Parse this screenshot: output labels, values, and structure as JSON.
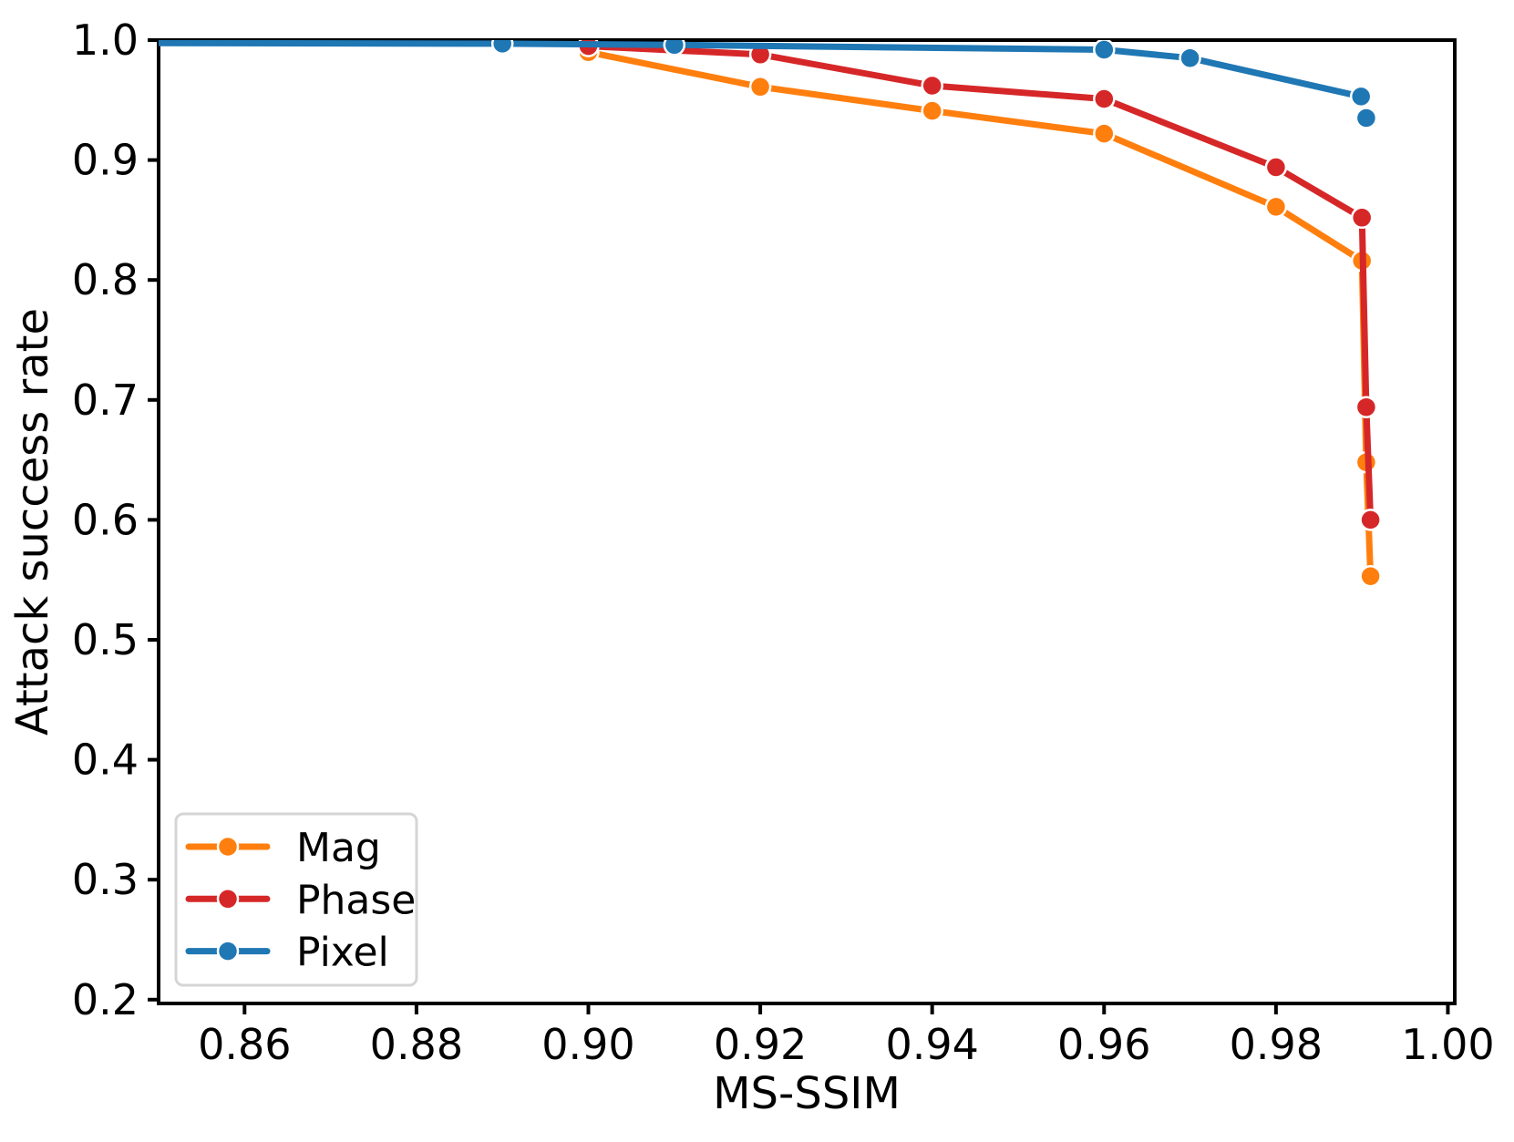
{
  "chart_data": {
    "type": "line",
    "title": "",
    "xlabel": "MS-SSIM",
    "ylabel": "Attack success rate",
    "xlim": [
      0.85,
      1.0008
    ],
    "ylim": [
      0.1968,
      1.0
    ],
    "grid": false,
    "background": "#ffffff",
    "spine_color": "#000000",
    "text_color": "#000000",
    "xticks": {
      "values": [
        0.86,
        0.88,
        0.9,
        0.92,
        0.94,
        0.96,
        0.98,
        1.0
      ],
      "labels": [
        "0.86",
        "0.88",
        "0.90",
        "0.92",
        "0.94",
        "0.96",
        "0.98",
        "1.00"
      ]
    },
    "yticks": {
      "values": [
        0.2,
        0.3,
        0.4,
        0.5,
        0.6,
        0.7,
        0.8,
        0.9,
        1.0
      ],
      "labels": [
        "0.2",
        "0.3",
        "0.4",
        "0.5",
        "0.6",
        "0.7",
        "0.8",
        "0.9",
        "1.0"
      ]
    },
    "legend": {
      "position": "lower-left",
      "border_color": "#d5d5d5",
      "entries": [
        {
          "label": "Mag",
          "color": "#ff7f0e"
        },
        {
          "label": "Phase",
          "color": "#d62728"
        },
        {
          "label": "Pixel",
          "color": "#1f77b4"
        }
      ]
    },
    "series": [
      {
        "name": "Mag",
        "color": "#ff7f0e",
        "x": [
          0.9,
          0.92,
          0.94,
          0.96,
          0.98,
          0.99,
          0.9905,
          0.991
        ],
        "y": [
          0.99,
          0.961,
          0.941,
          0.922,
          0.861,
          0.816,
          0.648,
          0.553
        ],
        "markers": [
          true,
          true,
          true,
          true,
          true,
          true,
          true,
          true
        ],
        "connect": [
          true,
          true,
          true,
          true,
          true,
          true,
          true
        ]
      },
      {
        "name": "Phase",
        "color": "#d62728",
        "x": [
          0.9,
          0.92,
          0.94,
          0.96,
          0.98,
          0.99,
          0.9905,
          0.991
        ],
        "y": [
          0.995,
          0.988,
          0.962,
          0.951,
          0.894,
          0.852,
          0.694,
          0.6
        ],
        "markers": [
          true,
          true,
          true,
          true,
          true,
          true,
          true,
          true
        ],
        "connect": [
          true,
          true,
          true,
          true,
          true,
          true,
          true
        ]
      },
      {
        "name": "Pixel",
        "color": "#1f77b4",
        "x": [
          0.85,
          0.89,
          0.91,
          0.96,
          0.97,
          0.9899,
          0.9905
        ],
        "y": [
          0.9975,
          0.997,
          0.996,
          0.992,
          0.985,
          0.953,
          0.935
        ],
        "markers": [
          false,
          true,
          true,
          true,
          true,
          true,
          true
        ],
        "connect": [
          true,
          true,
          true,
          true,
          true,
          false
        ]
      }
    ]
  }
}
